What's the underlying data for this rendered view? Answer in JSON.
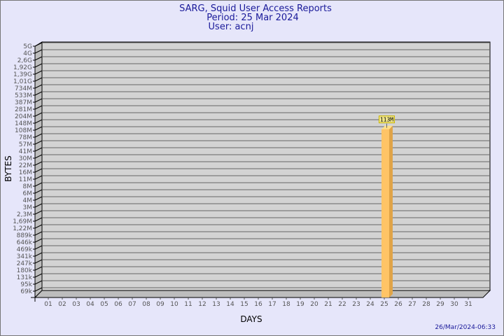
{
  "chart_data": {
    "type": "bar",
    "title": [
      "SARG, Squid User Access Reports",
      "Period: 25 Mar 2024",
      "User: acnj"
    ],
    "xlabel": "DAYS",
    "ylabel": "BYTES",
    "yscale": "log",
    "ytick_labels": [
      "5G",
      "4G",
      "2,6G",
      "1,92G",
      "1,39G",
      "1,01G",
      "734M",
      "533M",
      "387M",
      "281M",
      "204M",
      "148M",
      "108M",
      "78M",
      "57M",
      "41M",
      "30M",
      "22M",
      "16M",
      "11M",
      "8M",
      "6M",
      "4M",
      "3M",
      "2,3M",
      "1,69M",
      "1,22M",
      "889k",
      "646k",
      "469k",
      "341k",
      "247k",
      "180k",
      "131k",
      "95k",
      "69k"
    ],
    "categories": [
      "01",
      "02",
      "03",
      "04",
      "05",
      "06",
      "07",
      "08",
      "09",
      "10",
      "11",
      "12",
      "13",
      "14",
      "15",
      "16",
      "17",
      "18",
      "19",
      "20",
      "21",
      "22",
      "23",
      "24",
      "25",
      "26",
      "27",
      "28",
      "29",
      "30",
      "31"
    ],
    "bars": [
      {
        "day": "25",
        "value_bytes": 113000000,
        "label": "113M"
      }
    ],
    "grid": true,
    "colors": {
      "bar_front": "#ffc466",
      "bar_side": "#e0a448",
      "bar_top": "#ffe08a",
      "plot_bg": "#d3d3d3",
      "label_bg": "#f0e68c",
      "title": "#1a1a9a"
    }
  },
  "timestamp": "26/Mar/2024-06:33"
}
